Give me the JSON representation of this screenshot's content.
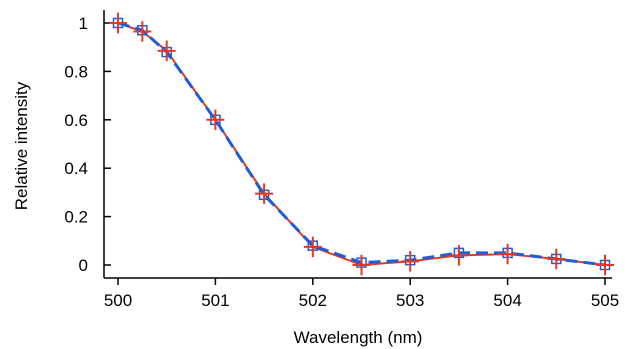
{
  "chart_data": {
    "type": "line",
    "title": "",
    "xlabel": "Wavelength (nm)",
    "ylabel": "Relative intensity",
    "xlim": [
      500,
      505
    ],
    "ylim": [
      0,
      1
    ],
    "x_ticks": [
      500,
      501,
      502,
      503,
      504,
      505
    ],
    "y_ticks": [
      0,
      0.2,
      0.4,
      0.6,
      0.8,
      1
    ],
    "x_tick_labels": [
      "500",
      "501",
      "502",
      "503",
      "504",
      "505"
    ],
    "y_tick_labels": [
      "0",
      "0.2",
      "0.4",
      "0.6",
      "0.8",
      "1"
    ],
    "grid": false,
    "legend": "none",
    "series": [
      {
        "style": "dashed",
        "color": "#1f5fd6",
        "marker": "square",
        "points": [
          {
            "x": 500.0,
            "y": 1.0
          },
          {
            "x": 500.25,
            "y": 0.97
          },
          {
            "x": 500.5,
            "y": 0.88
          },
          {
            "x": 501.0,
            "y": 0.6
          },
          {
            "x": 501.5,
            "y": 0.29
          },
          {
            "x": 502.0,
            "y": 0.08
          },
          {
            "x": 502.5,
            "y": 0.01
          },
          {
            "x": 503.0,
            "y": 0.02
          },
          {
            "x": 503.5,
            "y": 0.05
          },
          {
            "x": 504.0,
            "y": 0.05
          },
          {
            "x": 504.5,
            "y": 0.025
          },
          {
            "x": 505.0,
            "y": 0.0
          }
        ]
      },
      {
        "style": "solid",
        "color": "#e8371f",
        "marker": "cross-errorbar",
        "points": [
          {
            "x": 500.0,
            "y": 1.0,
            "yerr": 0.03
          },
          {
            "x": 500.25,
            "y": 0.965,
            "yerr": 0.03
          },
          {
            "x": 500.5,
            "y": 0.885,
            "yerr": 0.03
          },
          {
            "x": 501.0,
            "y": 0.6,
            "yerr": 0.03
          },
          {
            "x": 501.5,
            "y": 0.295,
            "yerr": 0.03
          },
          {
            "x": 502.0,
            "y": 0.075,
            "yerr": 0.03
          },
          {
            "x": 502.5,
            "y": 0.0,
            "yerr": 0.03
          },
          {
            "x": 503.0,
            "y": 0.015,
            "yerr": 0.03
          },
          {
            "x": 503.5,
            "y": 0.04,
            "yerr": 0.03
          },
          {
            "x": 504.0,
            "y": 0.045,
            "yerr": 0.03
          },
          {
            "x": 504.5,
            "y": 0.025,
            "yerr": 0.03
          },
          {
            "x": 505.0,
            "y": 0.0,
            "yerr": 0.03
          }
        ]
      }
    ]
  }
}
